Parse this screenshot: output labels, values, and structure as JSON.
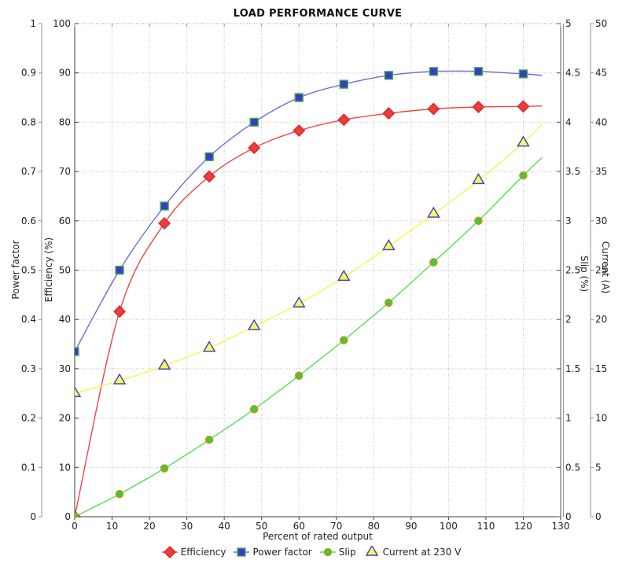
{
  "chart_data": {
    "type": "line",
    "title": "LOAD PERFORMANCE CURVE",
    "xlabel": "Percent of rated output",
    "x_range": [
      0,
      130
    ],
    "x_tick_step": 10,
    "grid": "dotted",
    "legend_position": "bottom-center",
    "axes": [
      {
        "id": "power_factor",
        "label": "Power factor",
        "side": "left-outer",
        "range": [
          0,
          1
        ],
        "tick_step": 0.1
      },
      {
        "id": "efficiency",
        "label": "Efficiency (%)",
        "side": "left-inner",
        "range": [
          0,
          100
        ],
        "tick_step": 10
      },
      {
        "id": "slip",
        "label": "Slip (%)",
        "side": "right-inner",
        "range": [
          0,
          5
        ],
        "tick_step": 0.5
      },
      {
        "id": "current",
        "label": "Current (A)",
        "side": "right-outer",
        "range": [
          0,
          50
        ],
        "tick_step": 5
      }
    ],
    "x": [
      0,
      12,
      24,
      36,
      48,
      60,
      72,
      84,
      96,
      108,
      120
    ],
    "series": [
      {
        "name": "Efficiency",
        "axis": "efficiency",
        "marker": "diamond",
        "line_color": "#ee4545",
        "marker_fill": "#ee3b3b",
        "marker_edge": "#d42a2a",
        "values": [
          0,
          41.6,
          59.5,
          69.0,
          74.8,
          78.3,
          80.5,
          81.8,
          82.7,
          83.1,
          83.2
        ],
        "curve_end": {
          "x": 125,
          "y": 83.3
        }
      },
      {
        "name": "Power factor",
        "axis": "power_factor",
        "marker": "square",
        "line_color": "#6b6bd6",
        "marker_fill": "#3a3acc",
        "marker_edge": "#3db83d",
        "values": [
          0.335,
          0.5,
          0.63,
          0.73,
          0.8,
          0.85,
          0.877,
          0.895,
          0.903,
          0.903,
          0.898
        ],
        "curve_end": {
          "x": 125,
          "y": 0.895
        }
      },
      {
        "name": "Slip",
        "axis": "slip",
        "marker": "circle",
        "line_color": "#55dd55",
        "marker_fill": "#3ecb35",
        "marker_edge": "#d89020",
        "values": [
          0,
          0.23,
          0.49,
          0.78,
          1.09,
          1.43,
          1.79,
          2.17,
          2.58,
          3.0,
          3.46
        ],
        "curve_end": {
          "x": 125,
          "y": 3.64
        }
      },
      {
        "name": "Current at 230 V",
        "axis": "current",
        "marker": "triangle",
        "line_color": "#f6f645",
        "marker_fill": "#fafa5a",
        "marker_edge": "#3c3cc8",
        "values": [
          12.5,
          13.8,
          15.3,
          17.1,
          19.3,
          21.6,
          24.3,
          27.4,
          30.7,
          34.1,
          37.9
        ],
        "curve_end": {
          "x": 125,
          "y": 39.8
        }
      }
    ],
    "colors": {
      "grid": "#c4c4c4",
      "border": "#3c3c3c",
      "spine": "#909090",
      "background": "#ffffff"
    }
  }
}
